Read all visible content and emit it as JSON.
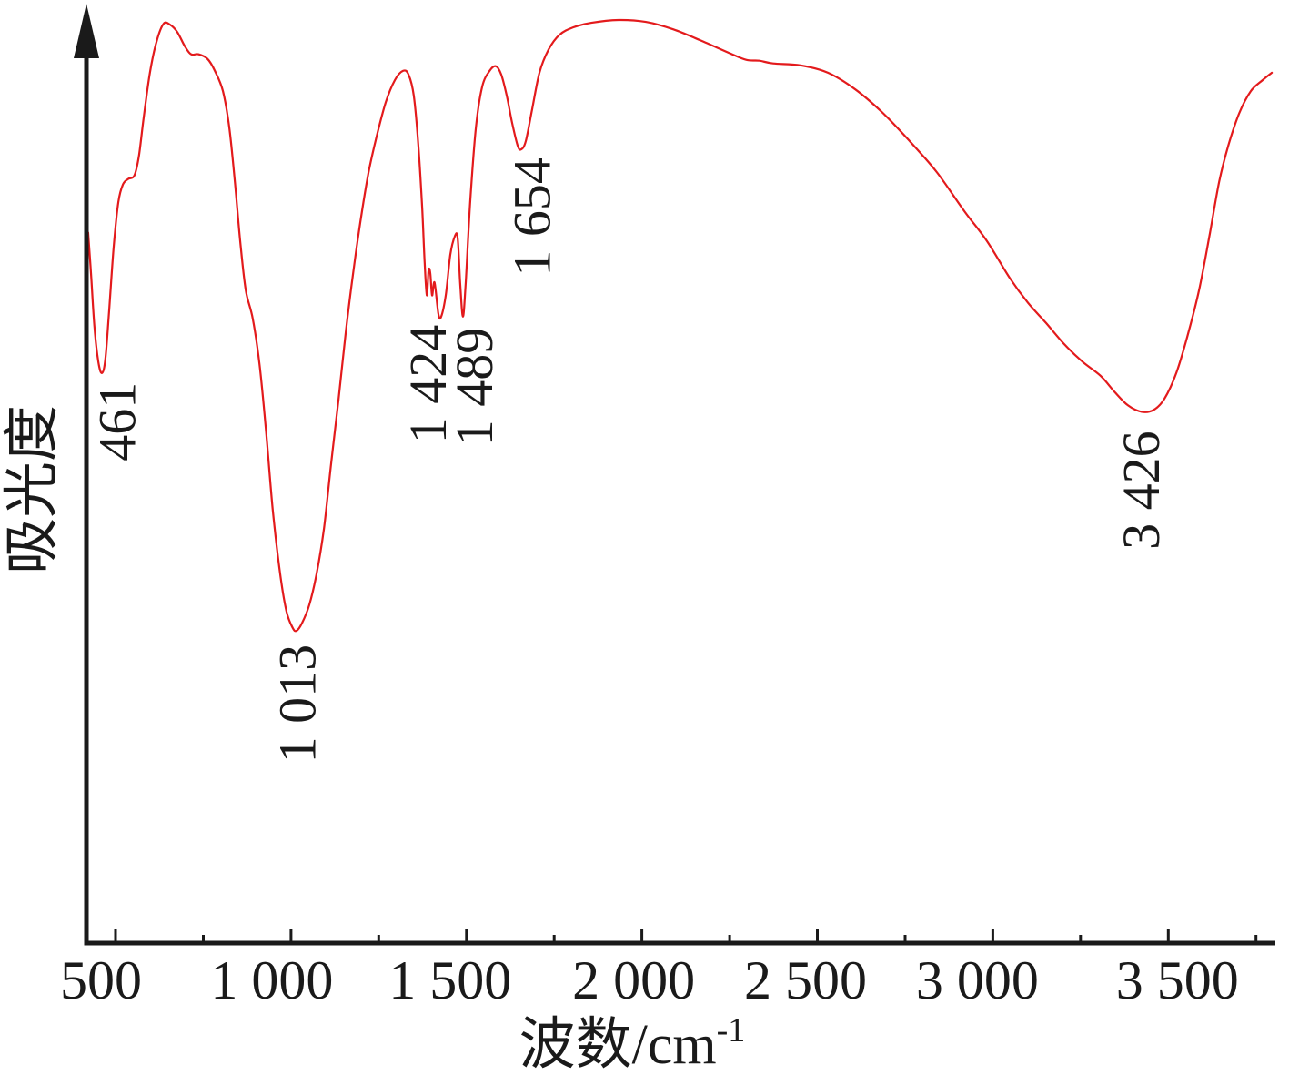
{
  "chart_data": {
    "type": "line",
    "title": "",
    "xlabel": "波数/cm",
    "xlabel_superscript": "-1",
    "ylabel": "吸光度",
    "xlim": [
      417,
      3800
    ],
    "ylim": [
      0,
      100
    ],
    "x_ticks": [
      500,
      1000,
      1500,
      2000,
      2500,
      3000,
      3500
    ],
    "x_tick_labels": [
      "500",
      "1 000",
      "1 500",
      "2 000",
      "2 500",
      "3 000",
      "3 500"
    ],
    "x_minor_ticks": [
      750,
      1250,
      1750,
      2250,
      2750,
      3250,
      3750
    ],
    "y_ticks": [],
    "grid": false,
    "legend": "none",
    "y_axis_arrow": true,
    "series": [
      {
        "color": "#e31a1c",
        "x": [
          422,
          430,
          440,
          451,
          461,
          471,
          482,
          495,
          508,
          521,
          536,
          554,
          567,
          580,
          598,
          617,
          637,
          655,
          676,
          697,
          715,
          736,
          762,
          783,
          806,
          824,
          840,
          855,
          871,
          891,
          910,
          928,
          948,
          969,
          987,
          1005,
          1016,
          1031,
          1052,
          1073,
          1094,
          1114,
          1135,
          1156,
          1177,
          1197,
          1221,
          1244,
          1270,
          1296,
          1319,
          1335,
          1350,
          1363,
          1374,
          1381,
          1387,
          1392,
          1397,
          1402,
          1409,
          1420,
          1428,
          1441,
          1454,
          1467,
          1475,
          1482,
          1490,
          1498,
          1511,
          1527,
          1545,
          1566,
          1584,
          1599,
          1615,
          1630,
          1646,
          1656,
          1669,
          1687,
          1708,
          1734,
          1765,
          1804,
          1856,
          1934,
          2011,
          2089,
          2167,
          2245,
          2297,
          2335,
          2374,
          2452,
          2530,
          2608,
          2685,
          2763,
          2841,
          2919,
          2983,
          3048,
          3100,
          3152,
          3204,
          3256,
          3307,
          3346,
          3385,
          3424,
          3458,
          3489,
          3523,
          3554,
          3588,
          3619,
          3645,
          3671,
          3702,
          3735,
          3769,
          3795
        ],
        "y": [
          76.8,
          72.4,
          66.5,
          62.8,
          61.6,
          63.1,
          68.5,
          75.4,
          80.1,
          82.0,
          82.6,
          83.0,
          85.2,
          89.2,
          94.1,
          97.5,
          99.4,
          99.3,
          98.5,
          97.0,
          96.1,
          96.1,
          95.6,
          94.3,
          92.1,
          88.2,
          82.3,
          75.9,
          70.6,
          67.5,
          62.6,
          55.7,
          46.8,
          39.9,
          35.8,
          34.0,
          33.7,
          34.5,
          36.5,
          39.9,
          44.8,
          51.7,
          58.6,
          66.0,
          72.4,
          77.8,
          83.3,
          87.2,
          90.9,
          93.3,
          94.3,
          93.9,
          91.6,
          86.2,
          79.3,
          73.4,
          70.0,
          72.7,
          72.4,
          70.0,
          71.4,
          68.0,
          67.7,
          70.0,
          74.4,
          76.4,
          76.2,
          71.4,
          67.7,
          71.4,
          80.3,
          88.2,
          92.6,
          94.3,
          94.8,
          93.9,
          91.6,
          88.7,
          86.2,
          85.8,
          86.7,
          90.1,
          94.1,
          96.6,
          98.2,
          99.0,
          99.5,
          99.8,
          99.6,
          98.8,
          97.6,
          96.3,
          95.5,
          95.4,
          95.1,
          94.9,
          94.1,
          92.3,
          89.8,
          86.7,
          83.3,
          79.1,
          75.9,
          71.9,
          69.2,
          67.0,
          64.7,
          62.8,
          61.3,
          59.6,
          58.1,
          57.4,
          57.6,
          58.8,
          61.6,
          65.5,
          70.6,
          76.8,
          82.3,
          86.2,
          89.7,
          92.1,
          93.3,
          94.1
        ]
      }
    ],
    "annotations": [
      {
        "text": "461",
        "x": 461
      },
      {
        "text": "1 013",
        "x": 1013
      },
      {
        "text": "1 424",
        "x": 1424
      },
      {
        "text": "1 489",
        "x": 1489
      },
      {
        "text": "1 654",
        "x": 1654
      },
      {
        "text": "3 426",
        "x": 3426
      }
    ]
  },
  "colors": {
    "axis": "#1a1a1a",
    "text": "#1a1a1a",
    "background": "#ffffff"
  }
}
